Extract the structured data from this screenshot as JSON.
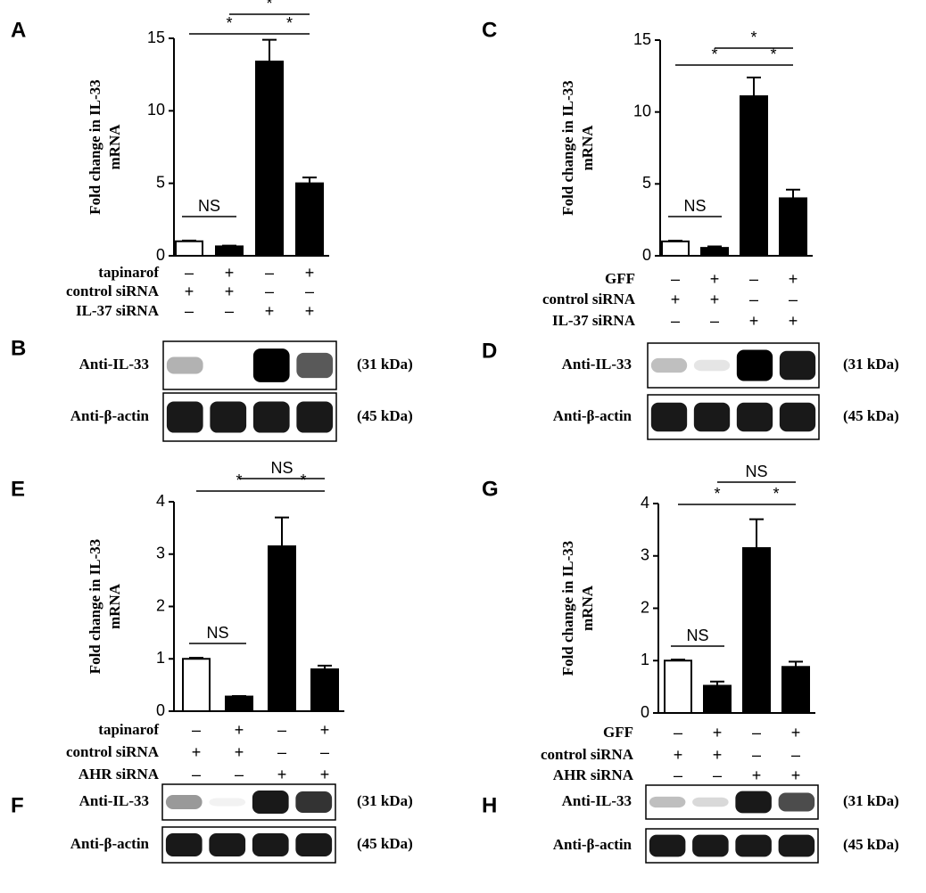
{
  "chart_data": [
    {
      "type": "bar",
      "panel": "A",
      "ylabel": [
        "Fold change in IL-33",
        "mRNA"
      ],
      "ylim": [
        0,
        15
      ],
      "yticks": [
        0,
        5,
        10,
        15
      ],
      "values": [
        1,
        0.65,
        13.4,
        5.0
      ],
      "errors": [
        0.05,
        0.05,
        1.5,
        0.4
      ],
      "colors": [
        "#ffffff",
        "#000000",
        "#000000",
        "#000000"
      ],
      "annotations": [
        "NS",
        "*",
        "*",
        "*"
      ],
      "conditions": [
        {
          "label": "tapinarof",
          "signs": [
            "–",
            "+",
            "–",
            "+"
          ]
        },
        {
          "label": "control siRNA",
          "signs": [
            "+",
            "+",
            "–",
            "–"
          ]
        },
        {
          "label": "IL-37 siRNA",
          "signs": [
            "–",
            "–",
            "+",
            "+"
          ]
        }
      ]
    },
    {
      "type": "bar",
      "panel": "C",
      "ylabel": [
        "Fold change in IL-33",
        "mRNA"
      ],
      "ylim": [
        0,
        15
      ],
      "yticks": [
        0,
        5,
        10,
        15
      ],
      "values": [
        1,
        0.55,
        11.1,
        4.0
      ],
      "errors": [
        0.05,
        0.1,
        1.3,
        0.6
      ],
      "colors": [
        "#ffffff",
        "#000000",
        "#000000",
        "#000000"
      ],
      "annotations": [
        "NS",
        "*",
        "*",
        "*"
      ],
      "conditions": [
        {
          "label": "GFF",
          "signs": [
            "–",
            "+",
            "–",
            "+"
          ]
        },
        {
          "label": "control siRNA",
          "signs": [
            "+",
            "+",
            "–",
            "–"
          ]
        },
        {
          "label": "IL-37 siRNA",
          "signs": [
            "–",
            "–",
            "+",
            "+"
          ]
        }
      ]
    },
    {
      "type": "bar",
      "panel": "E",
      "ylabel": [
        "Fold change in IL-33",
        "mRNA"
      ],
      "ylim": [
        0,
        4
      ],
      "yticks": [
        0,
        1,
        2,
        3,
        4
      ],
      "values": [
        1,
        0.28,
        3.15,
        0.8
      ],
      "errors": [
        0.02,
        0.01,
        0.55,
        0.07
      ],
      "colors": [
        "#ffffff",
        "#000000",
        "#000000",
        "#000000"
      ],
      "annotations": [
        "NS",
        "*",
        "*",
        "NS"
      ],
      "conditions": [
        {
          "label": "tapinarof",
          "signs": [
            "–",
            "+",
            "–",
            "+"
          ]
        },
        {
          "label": "control siRNA",
          "signs": [
            "+",
            "+",
            "–",
            "–"
          ]
        },
        {
          "label": "AHR siRNA",
          "signs": [
            "–",
            "–",
            "+",
            "+"
          ]
        }
      ]
    },
    {
      "type": "bar",
      "panel": "G",
      "ylabel": [
        "Fold change in IL-33",
        "mRNA"
      ],
      "ylim": [
        0,
        4
      ],
      "yticks": [
        0,
        1,
        2,
        3,
        4
      ],
      "values": [
        1,
        0.52,
        3.15,
        0.88
      ],
      "errors": [
        0.02,
        0.08,
        0.55,
        0.1
      ],
      "colors": [
        "#ffffff",
        "#000000",
        "#000000",
        "#000000"
      ],
      "annotations": [
        "NS",
        "*",
        "*",
        "NS"
      ],
      "conditions": [
        {
          "label": "GFF",
          "signs": [
            "–",
            "+",
            "–",
            "+"
          ]
        },
        {
          "label": "control siRNA",
          "signs": [
            "+",
            "+",
            "–",
            "–"
          ]
        },
        {
          "label": "AHR siRNA",
          "signs": [
            "–",
            "–",
            "+",
            "+"
          ]
        }
      ]
    }
  ],
  "blots": [
    {
      "panel": "B",
      "rows": [
        {
          "label": "Anti-IL-33",
          "size": "(31 kDa)"
        },
        {
          "label": "Anti-β-actin",
          "size": "(45 kDa)"
        }
      ]
    },
    {
      "panel": "D",
      "rows": [
        {
          "label": "Anti-IL-33",
          "size": "(31 kDa)"
        },
        {
          "label": "Anti-β-actin",
          "size": "(45 kDa)"
        }
      ]
    },
    {
      "panel": "F",
      "rows": [
        {
          "label": "Anti-IL-33",
          "size": "(31 kDa)"
        },
        {
          "label": "Anti-β-actin",
          "size": "(45 kDa)"
        }
      ]
    },
    {
      "panel": "H",
      "rows": [
        {
          "label": "Anti-IL-33",
          "size": "(31 kDa)"
        },
        {
          "label": "Anti-β-actin",
          "size": "(45 kDa)"
        }
      ]
    }
  ]
}
